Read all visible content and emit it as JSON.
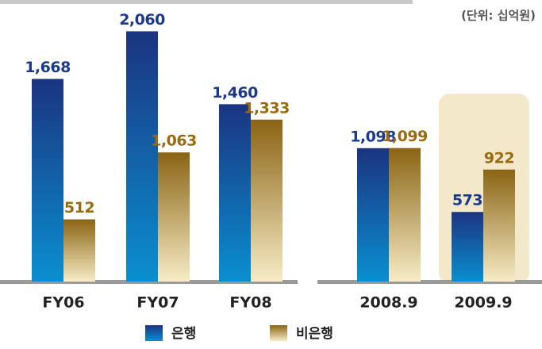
{
  "chart_data": {
    "type": "bar",
    "unit": "(단위: 십억원)",
    "categories": [
      "FY06",
      "FY07",
      "FY08",
      "2008.9",
      "2009.9"
    ],
    "series": [
      {
        "name": "은행",
        "color": "#1b3480",
        "values": [
          1668,
          2060,
          1460,
          1098,
          573
        ],
        "value_labels": [
          "1,668",
          "2,060",
          "1,460",
          "1,098",
          "573"
        ]
      },
      {
        "name": "비은행",
        "color": "#8a6414",
        "values": [
          512,
          1063,
          1333,
          1099,
          922
        ],
        "value_labels": [
          "512",
          "1,063",
          "1,333",
          "1,099",
          "922"
        ]
      }
    ],
    "ylim": [
      0,
      2200
    ],
    "legend": "bottom"
  }
}
